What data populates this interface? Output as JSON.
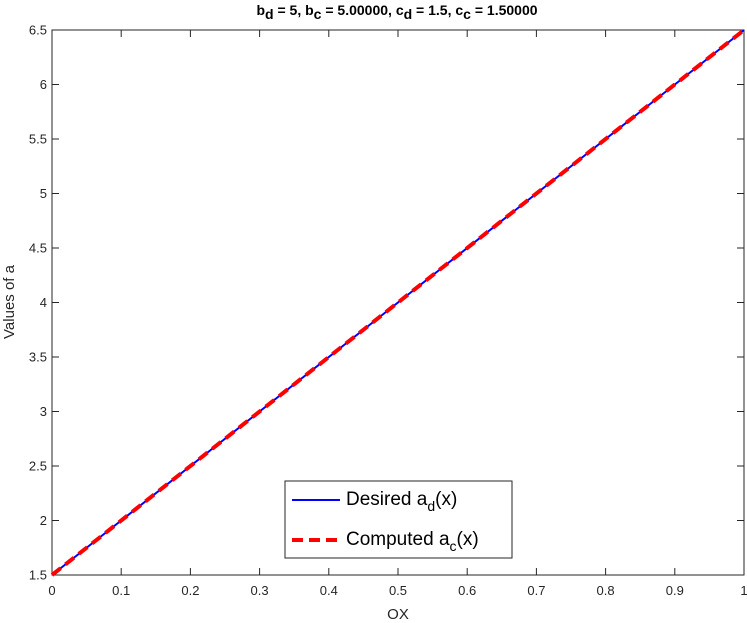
{
  "chart_data": {
    "type": "line",
    "title_parts": {
      "b": "b",
      "bd_sub": "d",
      "bd_val": " = 5,  ",
      "bc_sub": "c",
      "bc_val": " = 5.00000,  ",
      "c": "c",
      "cd_sub": "d",
      "cd_val": " = 1.5,  ",
      "cc_sub": "c",
      "cc_val": " = 1.50000"
    },
    "xlabel": "OX",
    "ylabel": "Values of a",
    "xlim": [
      0,
      1
    ],
    "ylim": [
      1.5,
      6.5
    ],
    "xticks": [
      "0",
      "0.1",
      "0.2",
      "0.3",
      "0.4",
      "0.5",
      "0.6",
      "0.7",
      "0.8",
      "0.9",
      "1"
    ],
    "yticks": [
      "1.5",
      "2",
      "2.5",
      "3",
      "3.5",
      "4",
      "4.5",
      "5",
      "5.5",
      "6",
      "6.5"
    ],
    "grid": false,
    "legend_position": "bottom-center",
    "series": [
      {
        "name_main": "Desired a",
        "name_sub": "d",
        "name_tail": "(x)",
        "color": "#0000ff",
        "style": "solid",
        "x": [
          0,
          1
        ],
        "y": [
          1.5,
          6.5
        ]
      },
      {
        "name_main": "Computed a",
        "name_sub": "c",
        "name_tail": "(x)",
        "color": "#ff0000",
        "style": "dashed",
        "x": [
          0,
          1
        ],
        "y": [
          1.5,
          6.5
        ]
      }
    ]
  }
}
